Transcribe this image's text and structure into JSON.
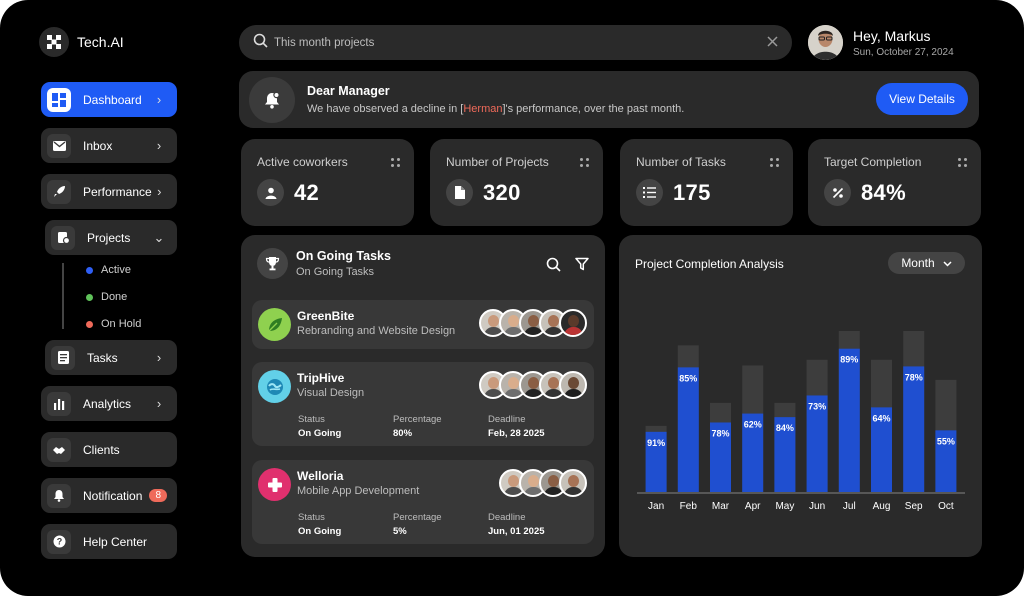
{
  "app": {
    "name": "Tech.AI"
  },
  "sidebar": {
    "items": [
      {
        "label": "Dashboard"
      },
      {
        "label": "Inbox"
      },
      {
        "label": "Performance"
      },
      {
        "label": "Projects"
      },
      {
        "label": "Tasks"
      },
      {
        "label": "Analytics"
      },
      {
        "label": "Clients"
      },
      {
        "label": "Notification",
        "badge": "8"
      },
      {
        "label": "Help Center"
      }
    ],
    "project_status": [
      {
        "label": "Active",
        "color": "#2f5ff5"
      },
      {
        "label": "Done",
        "color": "#5fc25a"
      },
      {
        "label": "On Hold",
        "color": "#ef6a5a"
      }
    ]
  },
  "search": {
    "placeholder": "This month projects"
  },
  "user": {
    "greeting": "Hey, Markus",
    "date": "Sun, October 27, 2024"
  },
  "banner": {
    "title": "Dear Manager",
    "message_pre": "We have observed a decline in [",
    "message_name": "Herman",
    "message_post": "]'s performance, over the past month.",
    "button": "View Details"
  },
  "stats": [
    {
      "label": "Active coworkers",
      "value": "42"
    },
    {
      "label": "Number of Projects",
      "value": "320"
    },
    {
      "label": "Number of Tasks",
      "value": "175"
    },
    {
      "label": "Target Completion",
      "value": "84%"
    }
  ],
  "tasks": {
    "title": "On Going Tasks",
    "subtitle": "On Going Tasks",
    "items": [
      {
        "name": "GreenBite",
        "desc": "Rebranding and Website Design",
        "logo_color": "#8fd14f"
      },
      {
        "name": "TripHive",
        "desc": "Visual Design",
        "logo_color": "#62d0e8",
        "status_label": "Status",
        "status": "On Going",
        "pct_label": "Percentage",
        "pct": "80%",
        "deadline_label": "Deadline",
        "deadline": "Feb, 28 2025"
      },
      {
        "name": "Welloria",
        "desc": "Mobile App Development",
        "logo_color": "#e0306e",
        "status_label": "Status",
        "status": "On Going",
        "pct_label": "Percentage",
        "pct": "5%",
        "deadline_label": "Deadline",
        "deadline": "Jun, 01 2025"
      }
    ]
  },
  "chart_panel": {
    "title": "Project Completion Analysis",
    "filter": "Month"
  },
  "chart_data": {
    "type": "bar",
    "categories": [
      "Jan",
      "Feb",
      "Mar",
      "Apr",
      "May",
      "Jun",
      "Jul",
      "Aug",
      "Sep",
      "Oct"
    ],
    "series": [
      {
        "values": [
          91,
          85,
          78,
          62,
          84,
          73,
          89,
          64,
          78,
          55
        ]
      }
    ],
    "totals": [
      23,
      51,
      31,
      44,
      31,
      46,
      56,
      46,
      56,
      39
    ],
    "colors": {
      "completed": "#1f4fd0",
      "remaining": "#3d3d3d"
    }
  }
}
